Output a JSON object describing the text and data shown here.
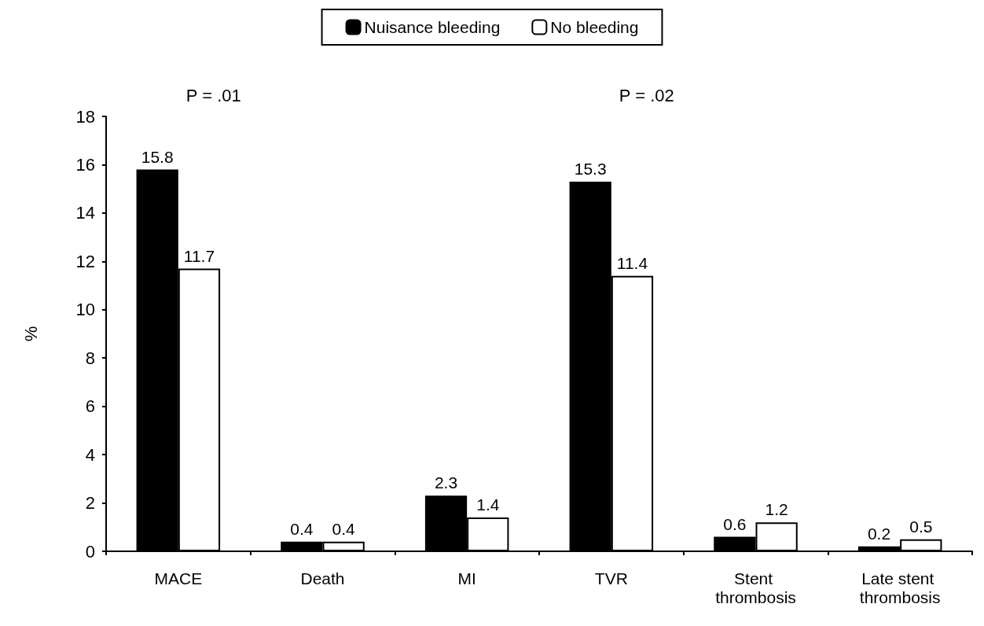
{
  "chart_data": {
    "type": "bar",
    "ylabel": "%",
    "categories": [
      "MACE",
      "Death",
      "MI",
      "TVR",
      "Stent thrombosis",
      "Late stent thrombosis"
    ],
    "series": [
      {
        "name": "Nuisance bleeding",
        "color": "#000000",
        "values": [
          15.8,
          0.4,
          2.3,
          15.3,
          0.6,
          0.2
        ]
      },
      {
        "name": "No bleeding",
        "color": "#ffffff",
        "values": [
          11.7,
          0.4,
          1.4,
          11.4,
          1.2,
          0.5
        ]
      }
    ],
    "ylim": [
      0,
      18
    ],
    "yticks": [
      0,
      2,
      4,
      6,
      8,
      10,
      12,
      14,
      16,
      18
    ],
    "annotations": [
      "P = .01",
      "P = .02"
    ],
    "data_labels": true,
    "grid": false,
    "legend": "top"
  }
}
